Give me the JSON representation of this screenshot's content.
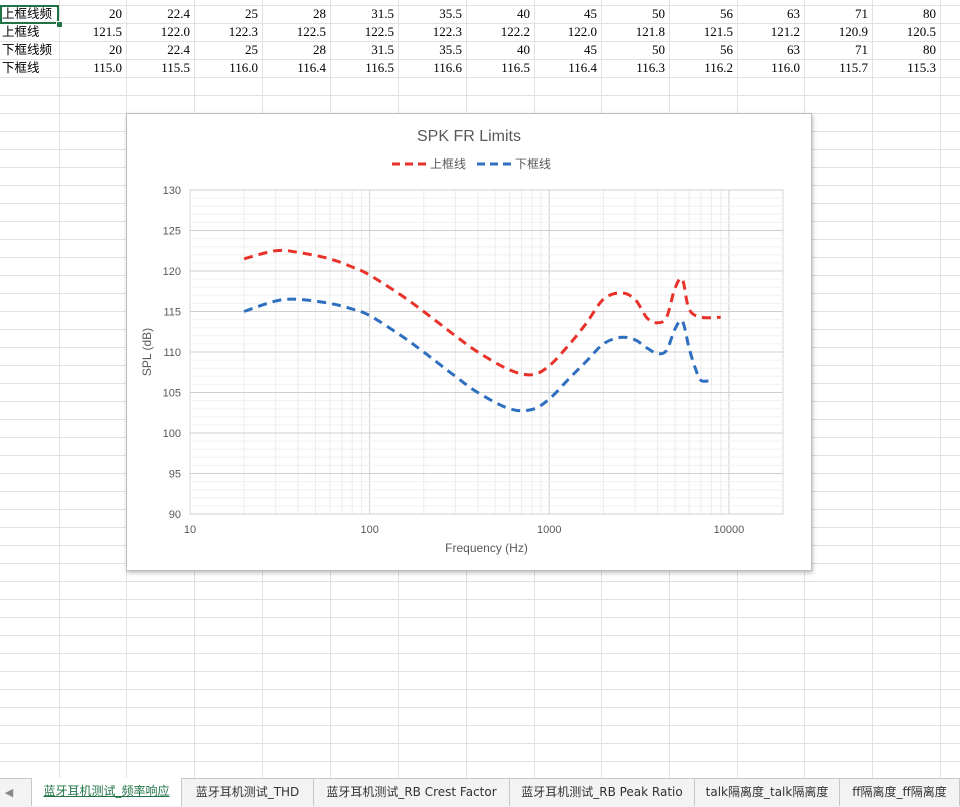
{
  "sheet": {
    "rows": [
      [
        "上框线频",
        "20",
        "22.4",
        "25",
        "28",
        "31.5",
        "35.5",
        "40",
        "45",
        "50",
        "56",
        "63",
        "71",
        "80"
      ],
      [
        "上框线",
        "121.5",
        "122.0",
        "122.3",
        "122.5",
        "122.5",
        "122.3",
        "122.2",
        "122.0",
        "121.8",
        "121.5",
        "121.2",
        "120.9",
        "120.5"
      ],
      [
        "下框线频",
        "20",
        "22.4",
        "25",
        "28",
        "31.5",
        "35.5",
        "40",
        "45",
        "50",
        "56",
        "63",
        "71",
        "80"
      ],
      [
        "下框线",
        "115.0",
        "115.5",
        "116.0",
        "116.4",
        "116.5",
        "116.6",
        "116.5",
        "116.4",
        "116.3",
        "116.2",
        "116.0",
        "115.7",
        "115.3"
      ]
    ],
    "active_cell_color": "#217346"
  },
  "chart_data": {
    "type": "line",
    "title": "SPK FR Limits",
    "xlabel": "Frequency (Hz)",
    "ylabel": "SPL (dB)",
    "xscale": "log",
    "xlim": [
      10,
      20000
    ],
    "ylim": [
      90,
      130
    ],
    "xticks": [
      "10",
      "100",
      "1000",
      "10000"
    ],
    "yticks": [
      "90",
      "95",
      "100",
      "105",
      "110",
      "115",
      "120",
      "125",
      "130"
    ],
    "grid": true,
    "legend": "top",
    "series": [
      {
        "name": "上框线",
        "color": "#e8322a",
        "dash": true,
        "x": [
          20,
          30,
          40,
          60,
          80,
          100,
          150,
          200,
          300,
          400,
          600,
          800,
          1000,
          1300,
          1600,
          2000,
          2500,
          3000,
          3500,
          4000,
          4500,
          5000,
          5500,
          6000,
          7000,
          9000
        ],
        "y": [
          121.5,
          122.5,
          122.3,
          121.5,
          120.5,
          119.5,
          117.0,
          115.0,
          112.0,
          110.0,
          107.8,
          107.2,
          108.3,
          111.0,
          113.5,
          116.5,
          117.3,
          116.5,
          114.2,
          113.6,
          114.3,
          117.8,
          119.0,
          115.3,
          114.3,
          114.3
        ]
      },
      {
        "name": "下框线",
        "color": "#2f6fbf",
        "dash": true,
        "x": [
          20,
          30,
          40,
          60,
          80,
          100,
          150,
          200,
          300,
          400,
          600,
          800,
          1000,
          1300,
          1600,
          2000,
          2500,
          3000,
          3500,
          4000,
          4500,
          5000,
          5500,
          6000,
          6500,
          7000,
          8000
        ],
        "y": [
          115.0,
          116.3,
          116.5,
          116.0,
          115.3,
          114.5,
          112.0,
          110.0,
          107.0,
          105.0,
          103.0,
          102.9,
          104.2,
          106.8,
          108.8,
          111.0,
          111.8,
          111.5,
          110.5,
          109.8,
          110.2,
          112.8,
          113.8,
          110.5,
          108.0,
          106.5,
          106.5
        ]
      }
    ]
  },
  "tabs": [
    {
      "label": "蓝牙耳机测试_频率响应",
      "active": true
    },
    {
      "label": "蓝牙耳机测试_THD",
      "active": false
    },
    {
      "label": "蓝牙耳机测试_RB Crest Factor",
      "active": false
    },
    {
      "label": "蓝牙耳机测试_RB Peak Ratio",
      "active": false
    },
    {
      "label": "talk隔离度_talk隔离度",
      "active": false
    },
    {
      "label": "ff隔离度_ff隔离度",
      "active": false
    }
  ],
  "tab_scroll_icon": "left-arrow-icon"
}
